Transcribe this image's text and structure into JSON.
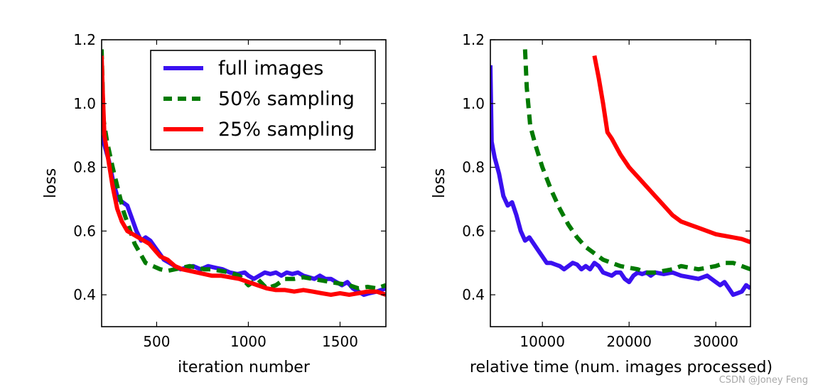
{
  "colors": {
    "full": "#3a10f0",
    "half": "#007a00",
    "quarter": "#ff0000"
  },
  "chart_data": [
    {
      "type": "line",
      "title": "",
      "xlabel": "iteration number",
      "ylabel": "loss",
      "xlim": [
        200,
        1750
      ],
      "ylim": [
        0.3,
        1.2
      ],
      "xticks": [
        500,
        1000,
        1500
      ],
      "yticks": [
        0.4,
        0.6,
        0.8,
        1.0,
        1.2
      ],
      "xtick_labels": [
        "500",
        "1000",
        "1500"
      ],
      "ytick_labels": [
        "0.4",
        "0.6",
        "0.8",
        "1.0",
        "1.2"
      ],
      "legend": {
        "position": "upper-right",
        "entries": [
          "full images",
          "50% sampling",
          "25% sampling"
        ]
      },
      "series": [
        {
          "name": "full images",
          "color_key": "full",
          "style": "solid",
          "x": [
            200,
            215,
            240,
            265,
            290,
            315,
            340,
            365,
            390,
            415,
            440,
            465,
            490,
            515,
            540,
            570,
            600,
            630,
            660,
            700,
            740,
            780,
            820,
            860,
            900,
            940,
            980,
            1000,
            1030,
            1060,
            1090,
            1120,
            1150,
            1180,
            1210,
            1240,
            1270,
            1300,
            1330,
            1360,
            1390,
            1420,
            1450,
            1480,
            1510,
            1540,
            1570,
            1600,
            1630,
            1660,
            1700,
            1750
          ],
          "y": [
            0.9,
            0.87,
            0.82,
            0.75,
            0.7,
            0.69,
            0.68,
            0.64,
            0.6,
            0.57,
            0.58,
            0.57,
            0.55,
            0.53,
            0.51,
            0.5,
            0.49,
            0.48,
            0.485,
            0.49,
            0.48,
            0.49,
            0.485,
            0.48,
            0.47,
            0.465,
            0.47,
            0.46,
            0.45,
            0.46,
            0.47,
            0.465,
            0.47,
            0.46,
            0.47,
            0.465,
            0.47,
            0.46,
            0.455,
            0.45,
            0.46,
            0.45,
            0.45,
            0.44,
            0.43,
            0.44,
            0.42,
            0.41,
            0.4,
            0.405,
            0.41,
            0.42
          ]
        },
        {
          "name": "50% sampling",
          "color_key": "half",
          "style": "dashed",
          "x": [
            200,
            210,
            230,
            260,
            290,
            320,
            350,
            380,
            410,
            440,
            480,
            520,
            560,
            600,
            640,
            680,
            720,
            760,
            800,
            850,
            900,
            950,
            1000,
            1050,
            1100,
            1150,
            1200,
            1250,
            1300,
            1350,
            1400,
            1450,
            1500,
            1550,
            1600,
            1650,
            1700,
            1750
          ],
          "y": [
            1.17,
            0.95,
            0.88,
            0.8,
            0.73,
            0.66,
            0.61,
            0.56,
            0.53,
            0.5,
            0.49,
            0.48,
            0.475,
            0.48,
            0.485,
            0.49,
            0.485,
            0.48,
            0.48,
            0.475,
            0.47,
            0.46,
            0.43,
            0.45,
            0.42,
            0.43,
            0.45,
            0.45,
            0.455,
            0.45,
            0.445,
            0.44,
            0.435,
            0.43,
            0.42,
            0.425,
            0.42,
            0.43
          ]
        },
        {
          "name": "25% sampling",
          "color_key": "quarter",
          "style": "solid",
          "x": [
            200,
            205,
            215,
            235,
            260,
            285,
            310,
            340,
            370,
            400,
            430,
            460,
            490,
            520,
            560,
            600,
            640,
            680,
            720,
            760,
            800,
            850,
            900,
            950,
            1000,
            1050,
            1100,
            1150,
            1200,
            1250,
            1300,
            1350,
            1400,
            1450,
            1500,
            1550,
            1600,
            1650,
            1700,
            1750
          ],
          "y": [
            1.15,
            1.05,
            0.9,
            0.83,
            0.74,
            0.67,
            0.63,
            0.6,
            0.59,
            0.58,
            0.57,
            0.56,
            0.54,
            0.52,
            0.51,
            0.49,
            0.48,
            0.475,
            0.47,
            0.465,
            0.46,
            0.46,
            0.455,
            0.45,
            0.44,
            0.43,
            0.42,
            0.415,
            0.415,
            0.41,
            0.415,
            0.41,
            0.405,
            0.4,
            0.405,
            0.4,
            0.405,
            0.41,
            0.41,
            0.4
          ]
        }
      ]
    },
    {
      "type": "line",
      "title": "",
      "xlabel": "relative time (num. images processed)",
      "ylabel": "loss",
      "xlim": [
        4000,
        34000
      ],
      "ylim": [
        0.3,
        1.2
      ],
      "xticks": [
        10000,
        20000,
        30000
      ],
      "yticks": [
        0.4,
        0.6,
        0.8,
        1.0,
        1.2
      ],
      "xtick_labels": [
        "10000",
        "20000",
        "30000"
      ],
      "ytick_labels": [
        "0.4",
        "0.6",
        "0.8",
        "1.0",
        "1.2"
      ],
      "series": [
        {
          "name": "full images",
          "color_key": "full",
          "style": "solid",
          "x": [
            4000,
            4150,
            4500,
            5000,
            5500,
            6000,
            6500,
            7000,
            7500,
            8000,
            8500,
            9000,
            9500,
            10000,
            10500,
            11000,
            11500,
            12000,
            12500,
            13000,
            13500,
            14000,
            14500,
            15000,
            15500,
            16000,
            16500,
            17000,
            17500,
            18000,
            18500,
            19000,
            19500,
            20000,
            20500,
            21000,
            21500,
            22000,
            22500,
            23000,
            24000,
            25000,
            26000,
            27000,
            28000,
            29000,
            30000,
            30500,
            31000,
            31500,
            32000,
            32500,
            33000,
            33500,
            34000
          ],
          "y": [
            1.12,
            0.88,
            0.83,
            0.78,
            0.71,
            0.68,
            0.69,
            0.65,
            0.6,
            0.57,
            0.58,
            0.56,
            0.54,
            0.52,
            0.5,
            0.5,
            0.495,
            0.49,
            0.48,
            0.49,
            0.5,
            0.495,
            0.48,
            0.49,
            0.48,
            0.5,
            0.49,
            0.47,
            0.465,
            0.46,
            0.47,
            0.47,
            0.45,
            0.44,
            0.46,
            0.47,
            0.465,
            0.47,
            0.46,
            0.47,
            0.465,
            0.47,
            0.46,
            0.455,
            0.45,
            0.46,
            0.44,
            0.43,
            0.44,
            0.42,
            0.4,
            0.405,
            0.41,
            0.43,
            0.42
          ]
        },
        {
          "name": "50% sampling",
          "color_key": "half",
          "style": "dashed",
          "x": [
            8000,
            8200,
            8600,
            9200,
            10000,
            11000,
            12000,
            13000,
            14000,
            15000,
            16000,
            17000,
            18000,
            19000,
            20000,
            21000,
            22000,
            23000,
            24000,
            25000,
            26000,
            27000,
            28000,
            29000,
            30000,
            31000,
            32000,
            33000,
            34000
          ],
          "y": [
            1.17,
            1.05,
            0.93,
            0.87,
            0.8,
            0.73,
            0.67,
            0.62,
            0.58,
            0.55,
            0.53,
            0.51,
            0.5,
            0.49,
            0.485,
            0.48,
            0.47,
            0.47,
            0.475,
            0.48,
            0.49,
            0.485,
            0.48,
            0.485,
            0.49,
            0.5,
            0.5,
            0.49,
            0.48
          ]
        },
        {
          "name": "25% sampling",
          "color_key": "quarter",
          "style": "solid",
          "x": [
            16000,
            16500,
            17000,
            17500,
            18000,
            19000,
            20000,
            21000,
            22000,
            23000,
            24000,
            25000,
            26000,
            27000,
            28000,
            29000,
            30000,
            31000,
            32000,
            33000,
            34000
          ],
          "y": [
            1.15,
            1.08,
            1.0,
            0.91,
            0.89,
            0.84,
            0.8,
            0.77,
            0.74,
            0.71,
            0.68,
            0.65,
            0.63,
            0.62,
            0.61,
            0.6,
            0.59,
            0.585,
            0.58,
            0.575,
            0.565
          ]
        }
      ]
    }
  ],
  "watermark": "CSDN @Joney Feng"
}
